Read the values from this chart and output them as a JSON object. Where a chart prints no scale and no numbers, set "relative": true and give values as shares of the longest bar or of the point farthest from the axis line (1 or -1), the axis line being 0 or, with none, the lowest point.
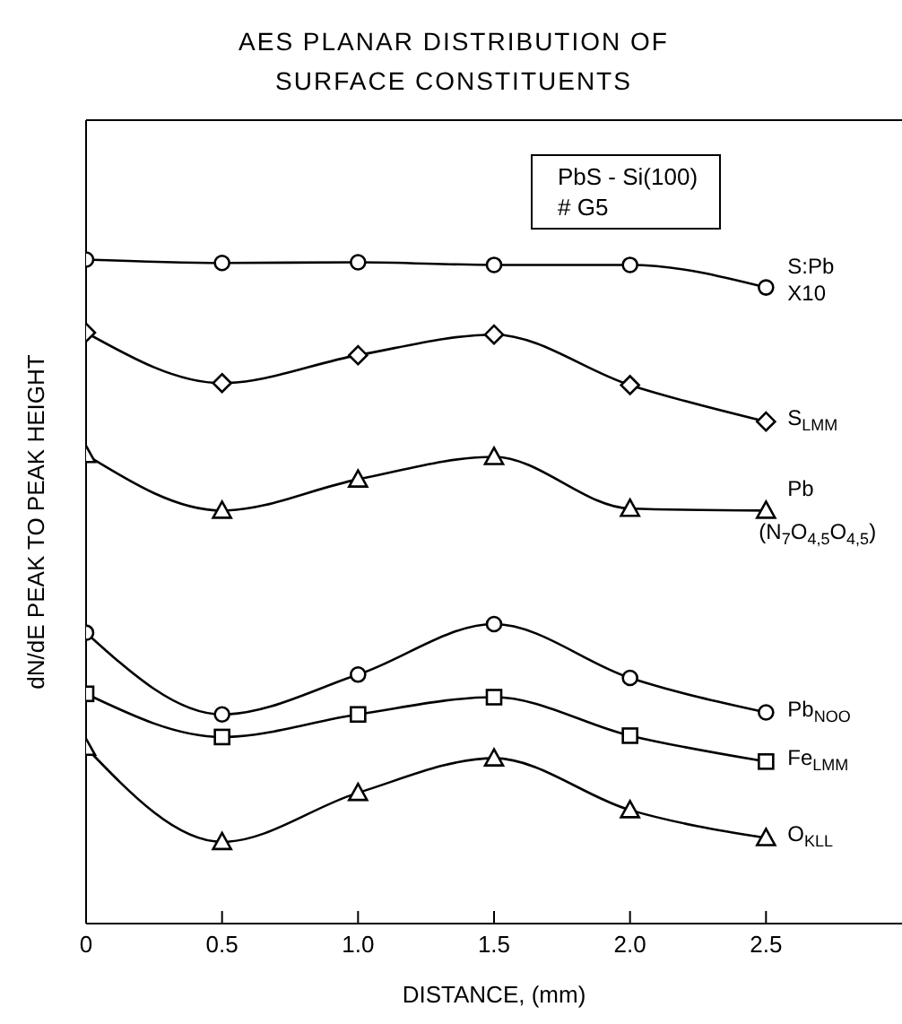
{
  "chart_data": {
    "type": "line",
    "title": "AES PLANAR DISTRIBUTION OF SURFACE CONSTITUENTS",
    "xlabel": "DISTANCE, (mm)",
    "ylabel": "dN/dE PEAK TO PEAK HEIGHT",
    "annotations": [
      "PbS - Si(100)",
      "# G5"
    ],
    "relative": true,
    "x": [
      0,
      0.5,
      1.0,
      1.5,
      2.0,
      2.5
    ],
    "xlim": [
      0,
      3.0
    ],
    "xticks": [
      0,
      0.5,
      {
        "value": 1,
        "label": "1.0"
      },
      1.5,
      {
        "value": 2,
        "label": "2.0"
      },
      2.5
    ],
    "line_style": "solid",
    "series": [
      {
        "name": "S:Pb X10",
        "color": "#000000",
        "marker": "circle",
        "values": [
          1,
          0.995,
          0.996,
          0.992,
          0.992,
          0.958
        ]
      },
      {
        "name": "S$_{LMM}$",
        "color": "#000000",
        "marker": "diamond",
        "values": [
          0.89,
          0.814,
          0.856,
          0.887,
          0.811,
          0.756
        ]
      },
      {
        "name": "Pb (N$_{7}$O$_{4,5}$O$_{4,5}$)",
        "color": "#000000",
        "marker": "triangle",
        "values": [
          0.706,
          0.622,
          0.669,
          0.703,
          0.625,
          0.622
        ]
      },
      {
        "name": "Pb$_{NOO}$",
        "color": "#000000",
        "marker": "circle",
        "values": [
          0.438,
          0.315,
          0.375,
          0.451,
          0.37,
          0.318
        ]
      },
      {
        "name": "Fe$_{LMM}$",
        "color": "#000000",
        "marker": "square",
        "values": [
          0.346,
          0.281,
          0.315,
          0.341,
          0.283,
          0.244
        ]
      },
      {
        "name": "O$_{KLL}$",
        "color": "#000000",
        "marker": "triangle",
        "values": [
          0.265,
          0.123,
          0.197,
          0.249,
          0.171,
          0.129
        ]
      }
    ]
  }
}
